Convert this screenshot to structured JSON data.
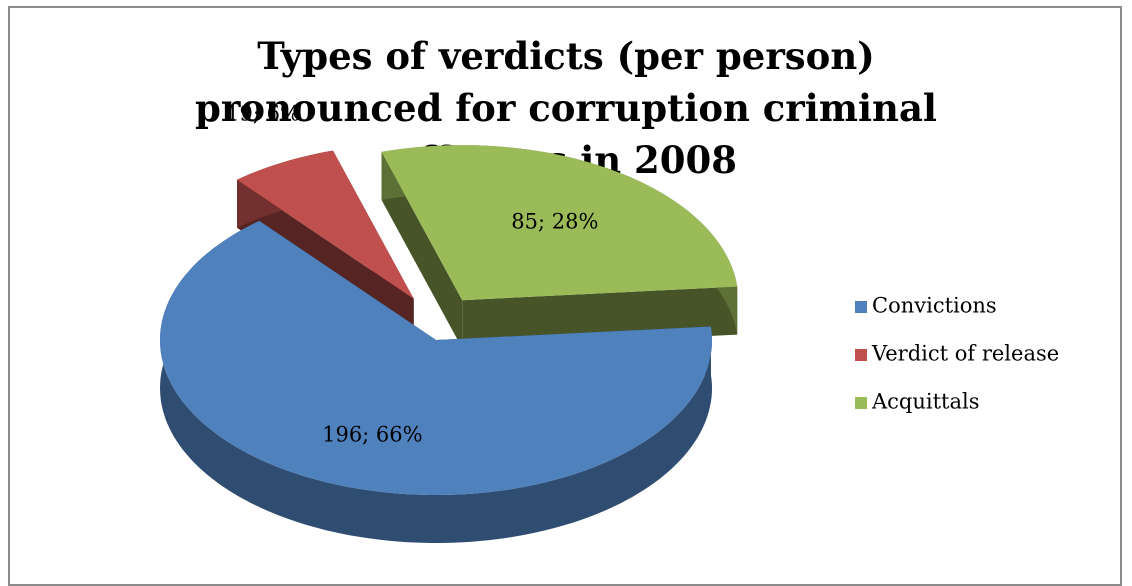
{
  "chart_data": {
    "type": "pie",
    "title": "Types of verdicts (per person) pronounced for corruption criminal offences in 2008",
    "categories": [
      "Convictions",
      "Verdict of release",
      "Acquittals"
    ],
    "values": [
      196,
      19,
      85
    ],
    "value_labels": [
      "196; 66%",
      "19; 6%",
      "85; 28%"
    ],
    "colors": [
      "#4f81bd",
      "#c0504d",
      "#9bbb59"
    ],
    "legend": "right"
  }
}
